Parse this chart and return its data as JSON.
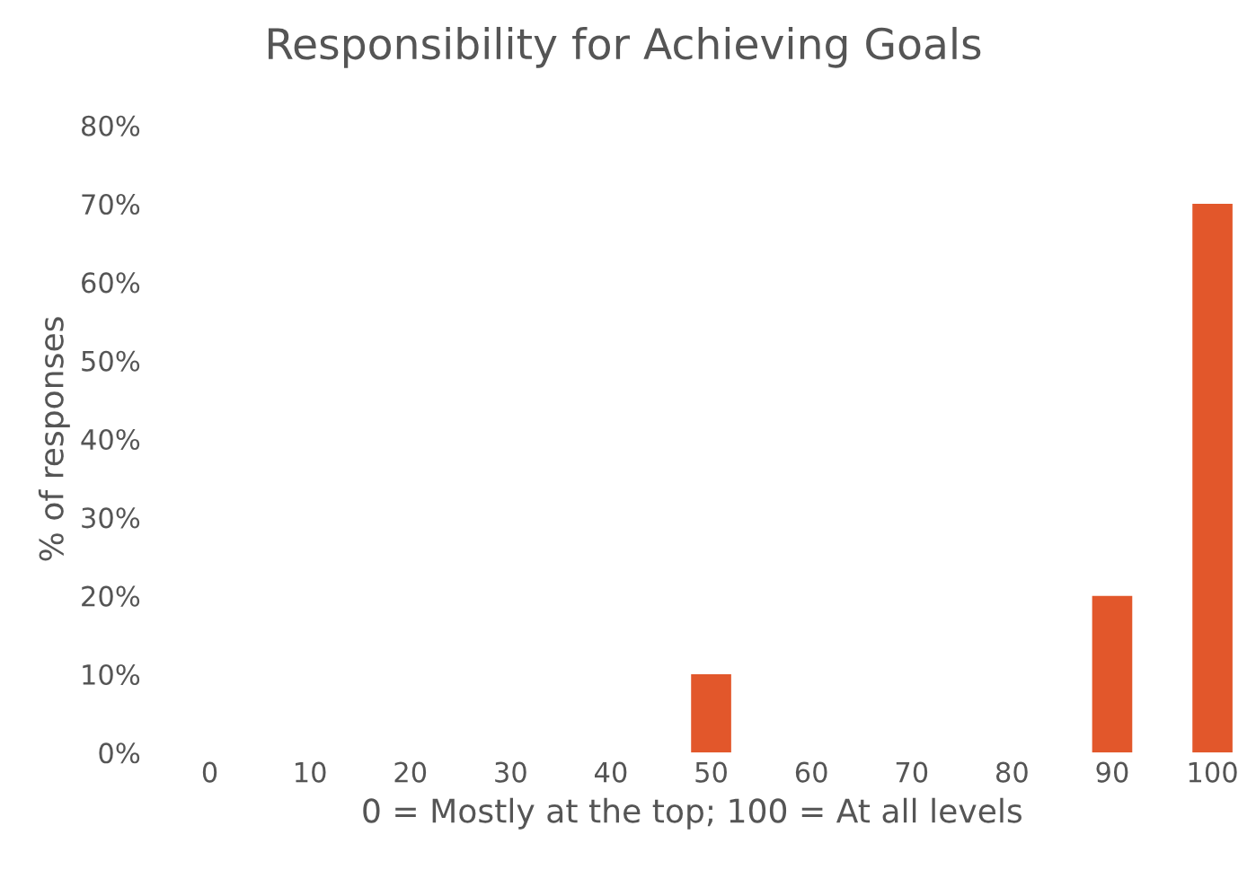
{
  "chart_data": {
    "type": "bar",
    "title": "Responsibility for Achieving Goals",
    "xlabel": "0 = Mostly at the top; 100 = At all levels",
    "ylabel": "% of responses",
    "categories": [
      "0",
      "10",
      "20",
      "30",
      "40",
      "50",
      "60",
      "70",
      "80",
      "90",
      "100"
    ],
    "values": [
      0,
      0,
      0,
      0,
      0,
      10,
      0,
      0,
      0,
      20,
      70
    ],
    "color": "#e2572b",
    "ylim": [
      0,
      80
    ],
    "yticks": [
      {
        "value": 0,
        "label": "0%"
      },
      {
        "value": 10,
        "label": "10%"
      },
      {
        "value": 20,
        "label": "20%"
      },
      {
        "value": 30,
        "label": "30%"
      },
      {
        "value": 40,
        "label": "40%"
      },
      {
        "value": 50,
        "label": "50%"
      },
      {
        "value": 60,
        "label": "60%"
      },
      {
        "value": 70,
        "label": "70%"
      },
      {
        "value": 80,
        "label": "80%"
      }
    ],
    "grid": false
  }
}
